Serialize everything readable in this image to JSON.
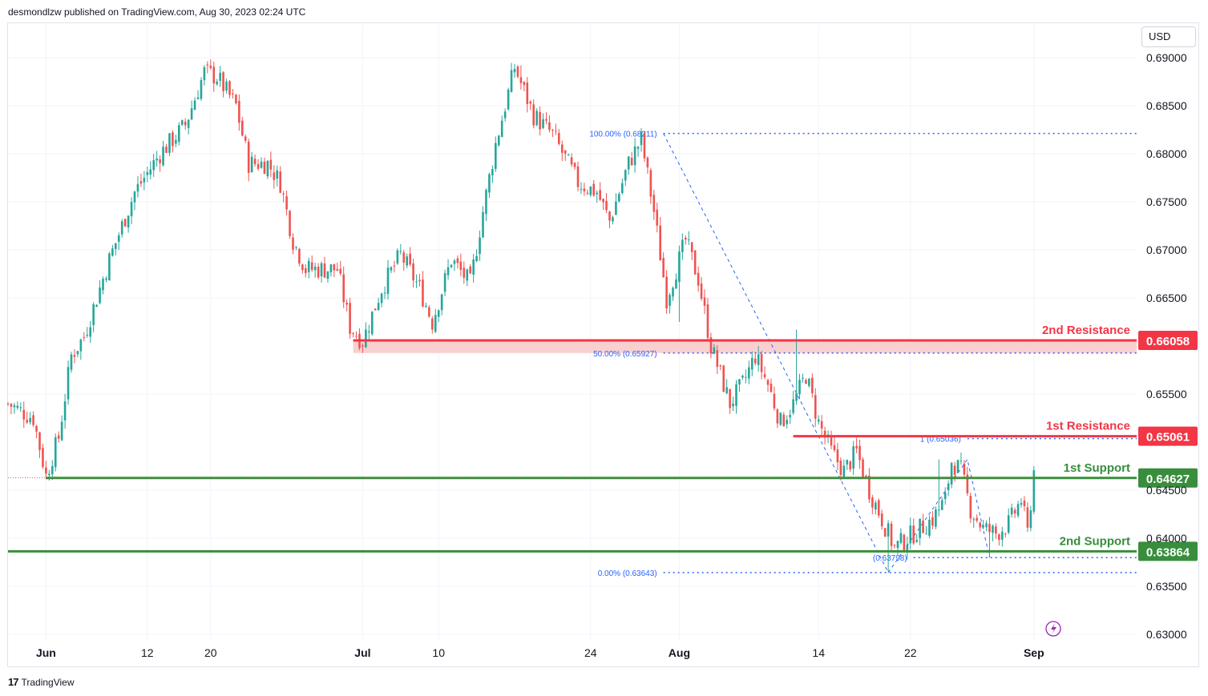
{
  "header": {
    "publisher_line": "desmondlzw published on TradingView.com, Aug 30, 2023 02:24 UTC"
  },
  "currency_label": "USD",
  "footer": {
    "brand": "TradingView",
    "logo_glyph": "17"
  },
  "colors": {
    "up": "#26a69a",
    "down": "#ef5350",
    "resistance": "#f23645",
    "support": "#388e3c",
    "fib": "#2962ff",
    "zone_fill": "#f8c8c8",
    "grid": "#f0f3fa",
    "axis_text": "#131722"
  },
  "chart_data": {
    "type": "candlestick",
    "title": "",
    "xlabel": "",
    "ylabel": "",
    "ylim": [
      0.6283,
      0.692
    ],
    "y_ticks": [
      "0.69000",
      "0.68500",
      "0.68000",
      "0.67500",
      "0.67000",
      "0.66500",
      "0.65500",
      "0.64500",
      "0.64000",
      "0.63500",
      "0.63000"
    ],
    "x_ticks": [
      {
        "label": "Jun",
        "bar": 12,
        "bold": true
      },
      {
        "label": "12",
        "bar": 44,
        "bold": false
      },
      {
        "label": "20",
        "bar": 64,
        "bold": false
      },
      {
        "label": "Jul",
        "bar": 112,
        "bold": true
      },
      {
        "label": "10",
        "bar": 136,
        "bold": false
      },
      {
        "label": "24",
        "bar": 184,
        "bold": false
      },
      {
        "label": "Aug",
        "bar": 212,
        "bold": true
      },
      {
        "label": "14",
        "bar": 256,
        "bold": false
      },
      {
        "label": "22",
        "bar": 285,
        "bold": false
      },
      {
        "label": "Sep",
        "bar": 324,
        "bold": true
      }
    ],
    "bar_count": 340,
    "anchors": [
      [
        0,
        0.654
      ],
      [
        8,
        0.6525
      ],
      [
        12,
        0.6465
      ],
      [
        16,
        0.6505
      ],
      [
        20,
        0.659
      ],
      [
        24,
        0.661
      ],
      [
        32,
        0.669
      ],
      [
        40,
        0.676
      ],
      [
        48,
        0.68
      ],
      [
        56,
        0.683
      ],
      [
        62,
        0.6885
      ],
      [
        66,
        0.688
      ],
      [
        72,
        0.685
      ],
      [
        76,
        0.679
      ],
      [
        82,
        0.679
      ],
      [
        86,
        0.677
      ],
      [
        90,
        0.671
      ],
      [
        94,
        0.668
      ],
      [
        100,
        0.668
      ],
      [
        104,
        0.668
      ],
      [
        108,
        0.662
      ],
      [
        112,
        0.6605
      ],
      [
        118,
        0.666
      ],
      [
        124,
        0.6695
      ],
      [
        130,
        0.666
      ],
      [
        134,
        0.6625
      ],
      [
        140,
        0.669
      ],
      [
        146,
        0.6665
      ],
      [
        150,
        0.674
      ],
      [
        154,
        0.681
      ],
      [
        160,
        0.689
      ],
      [
        166,
        0.684
      ],
      [
        172,
        0.682
      ],
      [
        180,
        0.677
      ],
      [
        186,
        0.676
      ],
      [
        190,
        0.673
      ],
      [
        196,
        0.679
      ],
      [
        200,
        0.6815
      ],
      [
        204,
        0.674
      ],
      [
        208,
        0.665
      ],
      [
        214,
        0.671
      ],
      [
        218,
        0.667
      ],
      [
        222,
        0.66
      ],
      [
        228,
        0.654
      ],
      [
        232,
        0.656
      ],
      [
        236,
        0.659
      ],
      [
        240,
        0.656
      ],
      [
        244,
        0.652
      ],
      [
        248,
        0.654
      ],
      [
        252,
        0.657
      ],
      [
        256,
        0.652
      ],
      [
        260,
        0.649
      ],
      [
        264,
        0.647
      ],
      [
        268,
        0.649
      ],
      [
        272,
        0.645
      ],
      [
        276,
        0.642
      ],
      [
        280,
        0.639
      ],
      [
        284,
        0.64
      ],
      [
        288,
        0.641
      ],
      [
        292,
        0.642
      ],
      [
        296,
        0.644
      ],
      [
        298,
        0.648
      ],
      [
        301,
        0.647
      ],
      [
        304,
        0.643
      ],
      [
        308,
        0.641
      ],
      [
        312,
        0.6405
      ],
      [
        316,
        0.6415
      ],
      [
        320,
        0.644
      ],
      [
        322,
        0.6405
      ],
      [
        324,
        0.647
      ]
    ],
    "extremes": [
      [
        13,
        0.646,
        "low"
      ],
      [
        64,
        0.6898,
        "high"
      ],
      [
        162,
        0.6892,
        "high"
      ],
      [
        212,
        0.6625,
        "low"
      ],
      [
        249,
        0.6617,
        "high"
      ],
      [
        278,
        0.6365,
        "low"
      ],
      [
        294,
        0.6482,
        "high"
      ],
      [
        310,
        0.638,
        "low"
      ]
    ],
    "levels": [
      {
        "name": "2nd Resistance",
        "value": "0.66058",
        "price": 0.66058,
        "kind": "resistance",
        "from_bar": 109
      },
      {
        "name": "1st Resistance",
        "value": "0.65061",
        "price": 0.65061,
        "kind": "resistance",
        "from_bar": 248
      },
      {
        "name": "1st Support",
        "value": "0.64627",
        "price": 0.64627,
        "kind": "support",
        "from_bar": 12
      },
      {
        "name": "2nd Support",
        "value": "0.63864",
        "price": 0.63864,
        "kind": "support",
        "from_bar": 0
      }
    ],
    "zone": {
      "top": 0.66058,
      "bottom": 0.65927,
      "from_bar": 109
    },
    "fib_levels": [
      {
        "label": "100.00% (0.68211)",
        "price": 0.68211,
        "from_bar": 207
      },
      {
        "label": "50.00% (0.65927)",
        "price": 0.65927,
        "from_bar": 207
      },
      {
        "label": "0.00% (0.63643)",
        "price": 0.63643,
        "from_bar": 207
      },
      {
        "label": "1 (0.65036)",
        "price": 0.65036,
        "from_bar": 303
      },
      {
        "label": "(0.63798)",
        "price": 0.63798,
        "from_bar": 286
      }
    ],
    "fib_trend": [
      [
        207,
        0.68211
      ],
      [
        278,
        0.63643
      ]
    ],
    "zigzag": [
      [
        278,
        0.63643
      ],
      [
        303,
        0.6482
      ],
      [
        310,
        0.63798
      ]
    ],
    "last_price": 0.6463
  }
}
